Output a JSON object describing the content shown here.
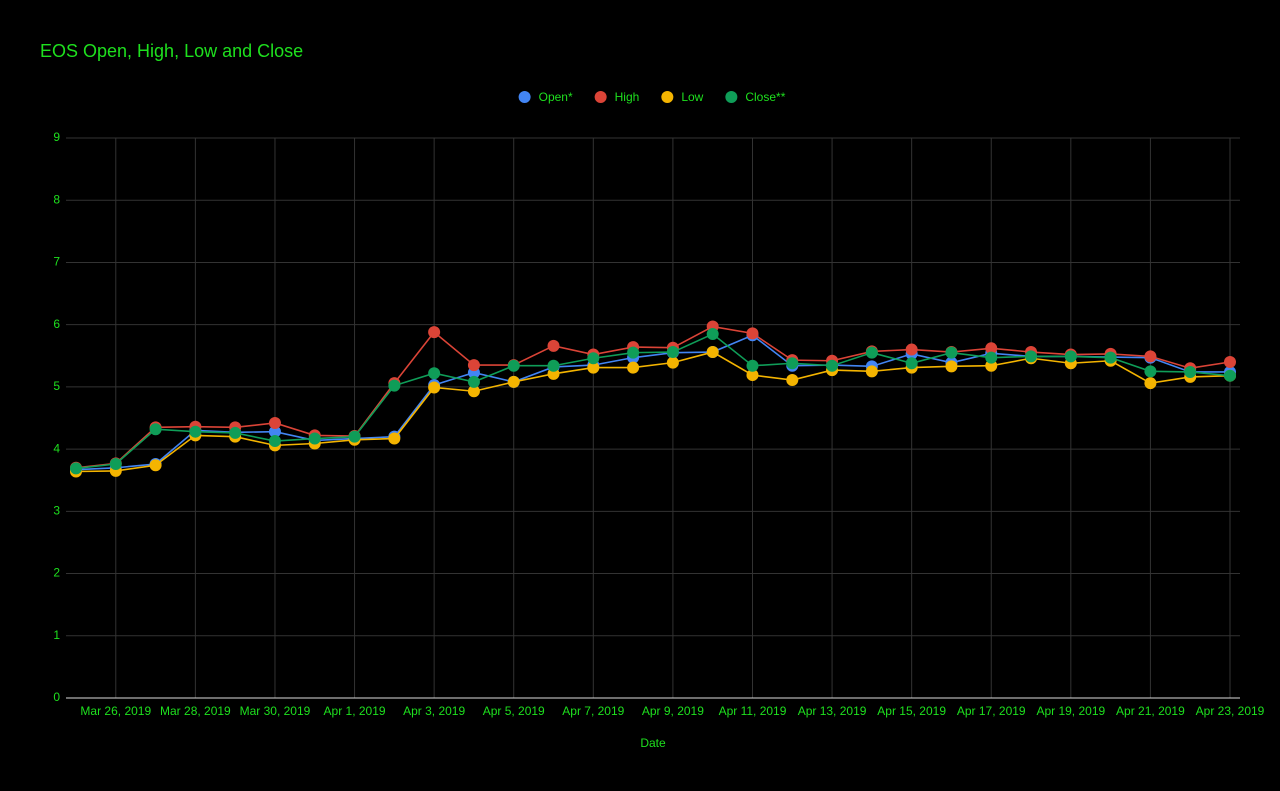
{
  "chart_data": {
    "type": "line",
    "title": "EOS Open, High, Low and Close",
    "x_label": "Date",
    "categories": [
      null,
      "Mar 26, 2019",
      null,
      "Mar 28, 2019",
      null,
      "Mar 30, 2019",
      null,
      "Apr 1, 2019",
      null,
      "Apr 3, 2019",
      null,
      "Apr 5, 2019",
      null,
      "Apr 7, 2019",
      null,
      "Apr 9, 2019",
      null,
      "Apr 11, 2019",
      null,
      "Apr 13, 2019",
      null,
      "Apr 15, 2019",
      null,
      "Apr 17, 2019",
      null,
      "Apr 19, 2019",
      null,
      "Apr 21, 2019",
      null,
      "Apr 23, 2019"
    ],
    "series": [
      {
        "name": "Open*",
        "color": "#4285f4",
        "values": [
          3.67,
          3.7,
          3.76,
          4.3,
          4.27,
          4.28,
          4.14,
          4.17,
          4.2,
          5.03,
          5.23,
          5.08,
          5.32,
          5.35,
          5.47,
          5.55,
          5.56,
          5.83,
          5.34,
          5.35,
          5.33,
          5.53,
          5.39,
          5.54,
          5.49,
          5.49,
          5.48,
          5.47,
          5.24,
          5.24
        ]
      },
      {
        "name": "High",
        "color": "#db4437",
        "values": [
          3.7,
          3.77,
          4.35,
          4.36,
          4.35,
          4.42,
          4.22,
          4.21,
          5.06,
          5.88,
          5.35,
          5.35,
          5.66,
          5.52,
          5.64,
          5.63,
          5.97,
          5.86,
          5.43,
          5.42,
          5.57,
          5.6,
          5.56,
          5.62,
          5.56,
          5.52,
          5.53,
          5.49,
          5.3,
          5.4
        ]
      },
      {
        "name": "Low",
        "color": "#f4b400",
        "values": [
          3.64,
          3.65,
          3.74,
          4.22,
          4.2,
          4.06,
          4.09,
          4.15,
          4.17,
          4.99,
          4.93,
          5.08,
          5.21,
          5.31,
          5.31,
          5.39,
          5.56,
          5.19,
          5.11,
          5.27,
          5.25,
          5.31,
          5.33,
          5.34,
          5.46,
          5.38,
          5.42,
          5.06,
          5.16,
          5.18
        ]
      },
      {
        "name": "Close**",
        "color": "#0f9d58",
        "values": [
          3.69,
          3.76,
          4.32,
          4.28,
          4.26,
          4.13,
          4.17,
          4.2,
          5.02,
          5.22,
          5.08,
          5.34,
          5.34,
          5.46,
          5.55,
          5.56,
          5.85,
          5.34,
          5.38,
          5.34,
          5.55,
          5.38,
          5.55,
          5.47,
          5.49,
          5.49,
          5.47,
          5.25,
          5.24,
          5.18
        ]
      }
    ],
    "ylim": [
      0,
      9
    ],
    "yticks": [
      0,
      1,
      2,
      3,
      4,
      5,
      6,
      7,
      8,
      9
    ],
    "grid": true,
    "legend": "top"
  }
}
